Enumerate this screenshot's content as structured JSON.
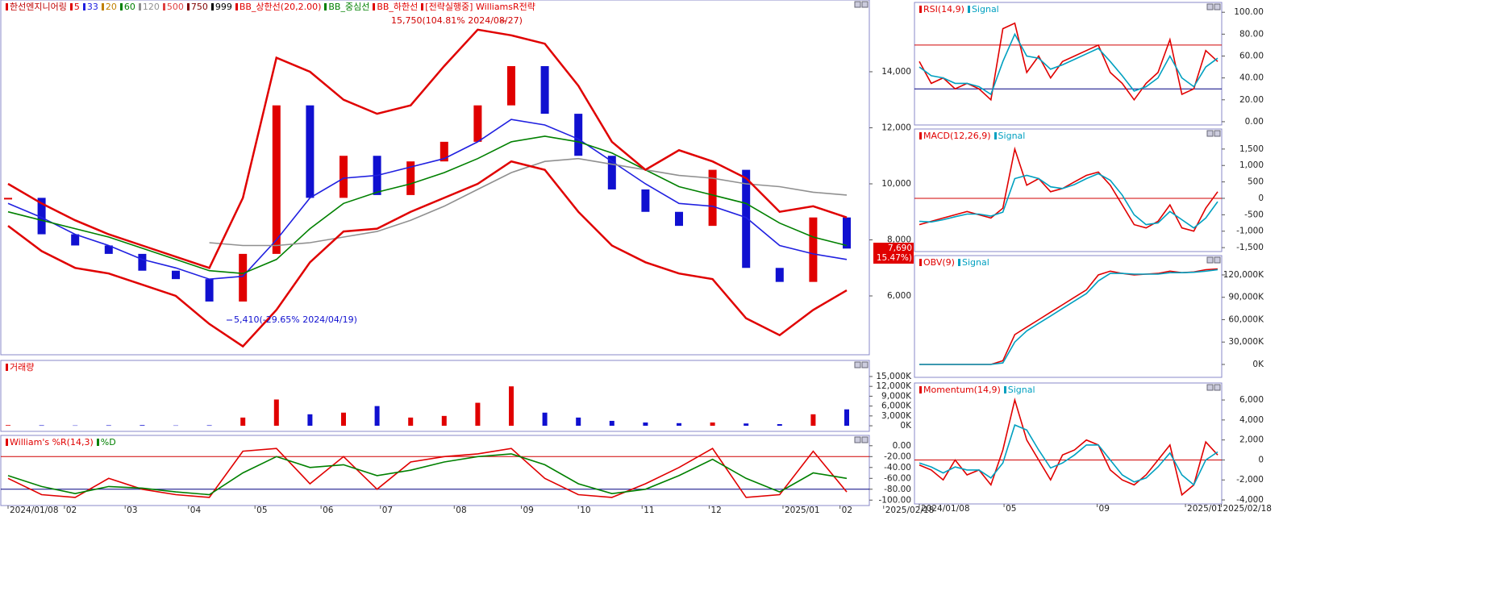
{
  "chart_data": [
    {
      "type": "candlestick",
      "series": [
        {
          "name": "한선엔지니어링",
          "color": "#e00000",
          "values": [
            9500,
            8200,
            7800,
            7500,
            6900,
            6600,
            5800,
            7500,
            12800,
            9500,
            11000,
            9600,
            10800,
            11500,
            12800,
            14200,
            12500,
            11000,
            9800,
            9000,
            8500,
            10500,
            7000,
            6500,
            8800,
            7690
          ]
        },
        {
          "name": "5",
          "color": "#e00000"
        },
        {
          "name": "33",
          "color": "#2020e0",
          "values": [
            9300,
            8800,
            8200,
            7800,
            7300,
            7000,
            6600,
            6700,
            8000,
            9500,
            10200,
            10300,
            10600,
            10900,
            11500,
            12300,
            12100,
            11600,
            10800,
            10000,
            9300,
            9200,
            8800,
            7800,
            7500,
            7300
          ]
        },
        {
          "name": "20",
          "color": "#c08000"
        },
        {
          "name": "60",
          "color": "#008000",
          "values": [
            9000,
            8700,
            8400,
            8100,
            7700,
            7300,
            6900,
            6800,
            7300,
            8400,
            9300,
            9700,
            10000,
            10400,
            10900,
            11500,
            11700,
            11500,
            11100,
            10500,
            9900,
            9600,
            9300,
            8600,
            8100,
            7800
          ]
        },
        {
          "name": "120",
          "color": "#909090",
          "values": [
            null,
            null,
            null,
            null,
            null,
            null,
            7900,
            7800,
            7800,
            7900,
            8100,
            8300,
            8700,
            9200,
            9800,
            10400,
            10800,
            10900,
            10700,
            10500,
            10300,
            10200,
            10000,
            9900,
            9700,
            9600
          ]
        },
        {
          "name": "500",
          "color": "#e04040"
        },
        {
          "name": "750",
          "color": "#800000"
        },
        {
          "name": "999",
          "color": "#000000"
        },
        {
          "name": "BB_상한선(20,2.00)",
          "color": "#e00000",
          "values": [
            10000,
            9300,
            8700,
            8200,
            7800,
            7400,
            7000,
            9500,
            14500,
            14000,
            13000,
            12500,
            12800,
            14200,
            15500,
            15300,
            15000,
            13500,
            11500,
            10500,
            11200,
            10800,
            10200,
            9000,
            9200,
            8800
          ]
        },
        {
          "name": "BB_중심선",
          "color": "#008000"
        },
        {
          "name": "BB_하한선",
          "color": "#e00000",
          "values": [
            8500,
            7600,
            7000,
            6800,
            6400,
            6000,
            5000,
            4200,
            5500,
            7200,
            8300,
            8400,
            9000,
            9500,
            10000,
            10800,
            10500,
            9000,
            7800,
            7200,
            6800,
            6600,
            5200,
            4600,
            5500,
            6200
          ]
        },
        {
          "name": "[전략실행중] WilliamsR전략",
          "color": "#e00000"
        }
      ],
      "annotations": [
        "15,750(104.81% 2024/08/27)",
        "5,410(-29.65% 2024/04/19)"
      ],
      "price_label": "7,690",
      "change_label": "( 15.47%)",
      "ylim": [
        3900,
        16560
      ],
      "yticks": [
        {
          "value": 6000,
          "label": "6,000"
        },
        {
          "value": 8000,
          "label": "8,000"
        },
        {
          "value": 10000,
          "label": "10,000"
        },
        {
          "value": 12000,
          "label": "12,000"
        },
        {
          "value": 14000,
          "label": "14,000"
        }
      ]
    },
    {
      "type": "bar",
      "series": [
        {
          "name": "거래량",
          "color": "#e00000",
          "values": [
            200,
            150,
            100,
            150,
            200,
            100,
            150,
            2500,
            8000,
            3500,
            4000,
            6000,
            2500,
            3000,
            7000,
            12000,
            4000,
            2500,
            1500,
            1000,
            800,
            1000,
            700,
            500,
            3500,
            5000
          ]
        }
      ],
      "ylim": [
        -1700,
        19900
      ],
      "yticks": [
        {
          "value": 0,
          "label": "0K"
        },
        {
          "value": 3000,
          "label": "3,000K"
        },
        {
          "value": 6000,
          "label": "6,000K"
        },
        {
          "value": 9000,
          "label": "9,000K"
        },
        {
          "value": 12000,
          "label": "12,000K"
        },
        {
          "value": 15000,
          "label": "15,000K"
        }
      ]
    },
    {
      "type": "line",
      "series": [
        {
          "name": "William's %R(14,3)",
          "color": "#e00000",
          "values": [
            -60,
            -90,
            -95,
            -60,
            -80,
            -90,
            -95,
            -10,
            -5,
            -70,
            -20,
            -80,
            -30,
            -20,
            -15,
            -5,
            -60,
            -90,
            -95,
            -70,
            -40,
            -5,
            -95,
            -90,
            -10,
            -85
          ]
        },
        {
          "name": "%D",
          "color": "#008000",
          "values": [
            -55,
            -75,
            -88,
            -75,
            -78,
            -85,
            -90,
            -50,
            -20,
            -40,
            -35,
            -55,
            -45,
            -30,
            -20,
            -15,
            -35,
            -70,
            -88,
            -80,
            -55,
            -25,
            -60,
            -85,
            -50,
            -60
          ]
        }
      ],
      "levels": [
        -20,
        -80
      ],
      "ylim": [
        -110,
        19
      ],
      "yticks": [
        {
          "value": -100,
          "label": "-100.00"
        },
        {
          "value": -80,
          "label": "-80.00"
        },
        {
          "value": -60,
          "label": "-60.00"
        },
        {
          "value": -40,
          "label": "-40.00"
        },
        {
          "value": -20,
          "label": "-20.00"
        },
        {
          "value": 0,
          "label": "0.00"
        }
      ],
      "xticks": [
        {
          "value": 0,
          "label": "2024/01/08"
        },
        {
          "value": 1.68,
          "label": "02"
        },
        {
          "value": 3.49,
          "label": "03"
        },
        {
          "value": 5.38,
          "label": "04"
        },
        {
          "value": 7.36,
          "label": "05"
        },
        {
          "value": 9.33,
          "label": "06"
        },
        {
          "value": 11.1,
          "label": "07"
        },
        {
          "value": 13.3,
          "label": "08"
        },
        {
          "value": 15.3,
          "label": "09"
        },
        {
          "value": 17,
          "label": "10"
        },
        {
          "value": 18.9,
          "label": "11"
        },
        {
          "value": 20.9,
          "label": "12"
        },
        {
          "value": 23.1,
          "label": "2025/01"
        },
        {
          "value": 24.8,
          "label": "02"
        },
        {
          "value": 26.1,
          "label": "2025/02/18"
        }
      ]
    },
    {
      "type": "line",
      "series": [
        {
          "name": "RSI(14,9)",
          "color": "#e00000",
          "values": [
            55,
            35,
            40,
            30,
            35,
            30,
            20,
            85,
            90,
            45,
            60,
            40,
            55,
            60,
            65,
            70,
            45,
            35,
            20,
            35,
            45,
            75,
            25,
            30,
            65,
            55
          ]
        },
        {
          "name": "Signal",
          "color": "#00a0c0",
          "values": [
            50,
            42,
            40,
            35,
            35,
            32,
            25,
            55,
            80,
            60,
            58,
            48,
            52,
            57,
            62,
            67,
            55,
            42,
            28,
            32,
            40,
            60,
            40,
            32,
            50,
            58
          ]
        }
      ],
      "levels": [
        70,
        30
      ],
      "ylim": [
        -3,
        109
      ],
      "yticks": [
        {
          "value": 0,
          "label": "0.00"
        },
        {
          "value": 20,
          "label": "20.00"
        },
        {
          "value": 40,
          "label": "40.00"
        },
        {
          "value": 60,
          "label": "60.00"
        },
        {
          "value": 80,
          "label": "80.00"
        },
        {
          "value": 100,
          "label": "100.00"
        }
      ]
    },
    {
      "type": "line",
      "series": [
        {
          "name": "MACD(12,26,9)",
          "color": "#e00000",
          "values": [
            -800,
            -700,
            -600,
            -500,
            -400,
            -500,
            -600,
            -300,
            1500,
            400,
            600,
            200,
            300,
            500,
            700,
            800,
            400,
            -200,
            -800,
            -900,
            -700,
            -200,
            -900,
            -1000,
            -300,
            200
          ]
        },
        {
          "name": "Signal",
          "color": "#00a0c0",
          "values": [
            -700,
            -720,
            -650,
            -560,
            -480,
            -480,
            -540,
            -420,
            600,
            700,
            600,
            350,
            300,
            420,
            600,
            750,
            550,
            100,
            -500,
            -800,
            -750,
            -400,
            -650,
            -900,
            -600,
            -100
          ]
        }
      ],
      "levels": [
        0
      ],
      "ylim": [
        -1620,
        2110
      ],
      "yticks": [
        {
          "value": -1500,
          "label": "-1,500"
        },
        {
          "value": -1000,
          "label": "-1,000"
        },
        -500,
        0,
        500,
        {
          "value": 1000,
          "label": "1,000"
        },
        {
          "value": 1500,
          "label": "1,500"
        }
      ]
    },
    {
      "type": "line",
      "series": [
        {
          "name": "OBV(9)",
          "color": "#e00000",
          "values": [
            0,
            0,
            0,
            0,
            0,
            0,
            0,
            5000,
            40000,
            50000,
            60000,
            70000,
            80000,
            90000,
            100000,
            120000,
            125000,
            122000,
            120000,
            121000,
            122000,
            125000,
            123000,
            124000,
            127000,
            128000
          ]
        },
        {
          "name": "Signal",
          "color": "#00a0c0",
          "values": [
            0,
            0,
            0,
            0,
            0,
            0,
            0,
            2000,
            30000,
            45000,
            55000,
            65000,
            75000,
            85000,
            95000,
            112000,
            122000,
            122000,
            121000,
            121000,
            121000,
            123000,
            123000,
            123500,
            125000,
            127000
          ]
        }
      ],
      "ylim": [
        -17300,
        145900
      ],
      "yticks": [
        {
          "value": 0,
          "label": "0K"
        },
        {
          "value": 30000,
          "label": "30,000K"
        },
        {
          "value": 60000,
          "label": "60,000K"
        },
        {
          "value": 90000,
          "label": "90,000K"
        },
        {
          "value": 120000,
          "label": "120,000K"
        }
      ]
    },
    {
      "type": "line",
      "series": [
        {
          "name": "Momentum(14,9)",
          "color": "#e00000",
          "values": [
            -500,
            -1000,
            -2000,
            0,
            -1500,
            -1000,
            -2500,
            1000,
            6000,
            2000,
            0,
            -2000,
            500,
            1000,
            2000,
            1500,
            -1000,
            -2000,
            -2500,
            -1500,
            0,
            1500,
            -3500,
            -2500,
            1800,
            500
          ]
        },
        {
          "name": "Signal",
          "color": "#00a0c0",
          "values": [
            -300,
            -700,
            -1300,
            -700,
            -1000,
            -1000,
            -1800,
            -300,
            3500,
            3000,
            1000,
            -800,
            -300,
            500,
            1500,
            1500,
            0,
            -1500,
            -2200,
            -1800,
            -700,
            700,
            -1500,
            -2500,
            0,
            800
          ]
        }
      ],
      "levels": [
        0
      ],
      "ylim": [
        -4400,
        7700
      ],
      "yticks": [
        {
          "value": -4000,
          "label": "-4,000"
        },
        {
          "value": -2000,
          "label": "-2,000"
        },
        0,
        {
          "value": 2000,
          "label": "2,000"
        },
        {
          "value": 4000,
          "label": "4,000"
        },
        {
          "value": 6000,
          "label": "6,000"
        }
      ],
      "xticks": [
        {
          "value": 0,
          "label": "2024/01/08"
        },
        {
          "value": 7.1,
          "label": "05"
        },
        {
          "value": 14.9,
          "label": "09"
        },
        {
          "value": 22.3,
          "label": "2025/01"
        },
        {
          "value": 25.3,
          "label": "2025/02/18"
        }
      ]
    }
  ]
}
